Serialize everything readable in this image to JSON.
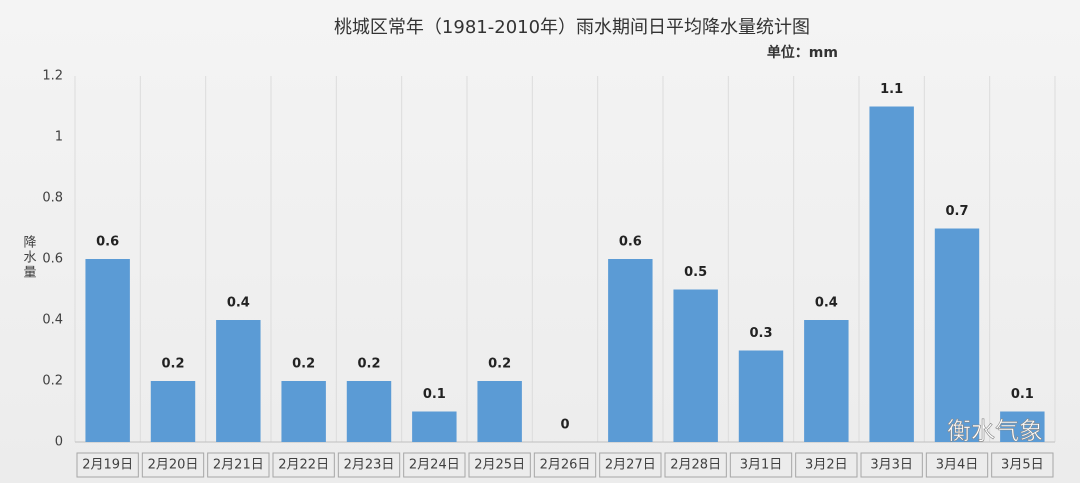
{
  "chart_data": {
    "type": "bar",
    "title": "桃城区常年（1981-2010年）雨水期间日平均降水量统计图",
    "subtitle": "单位：mm",
    "y_label": "降水量",
    "watermark": "衡水气象",
    "categories": [
      "2月19日",
      "2月20日",
      "2月21日",
      "2月22日",
      "2月23日",
      "2月24日",
      "2月25日",
      "2月26日",
      "2月27日",
      "2月28日",
      "3月1日",
      "3月2日",
      "3月3日",
      "3月4日",
      "3月5日"
    ],
    "values": [
      0.6,
      0.2,
      0.4,
      0.2,
      0.2,
      0.1,
      0.2,
      0,
      0.6,
      0.5,
      0.3,
      0.4,
      1.1,
      0.7,
      0.1
    ],
    "color": "#5b9bd5",
    "ylim": [
      0,
      1.2
    ],
    "yticks": [
      0,
      0.2,
      0.4,
      0.6,
      0.8,
      1,
      1.2
    ],
    "grid": false
  }
}
